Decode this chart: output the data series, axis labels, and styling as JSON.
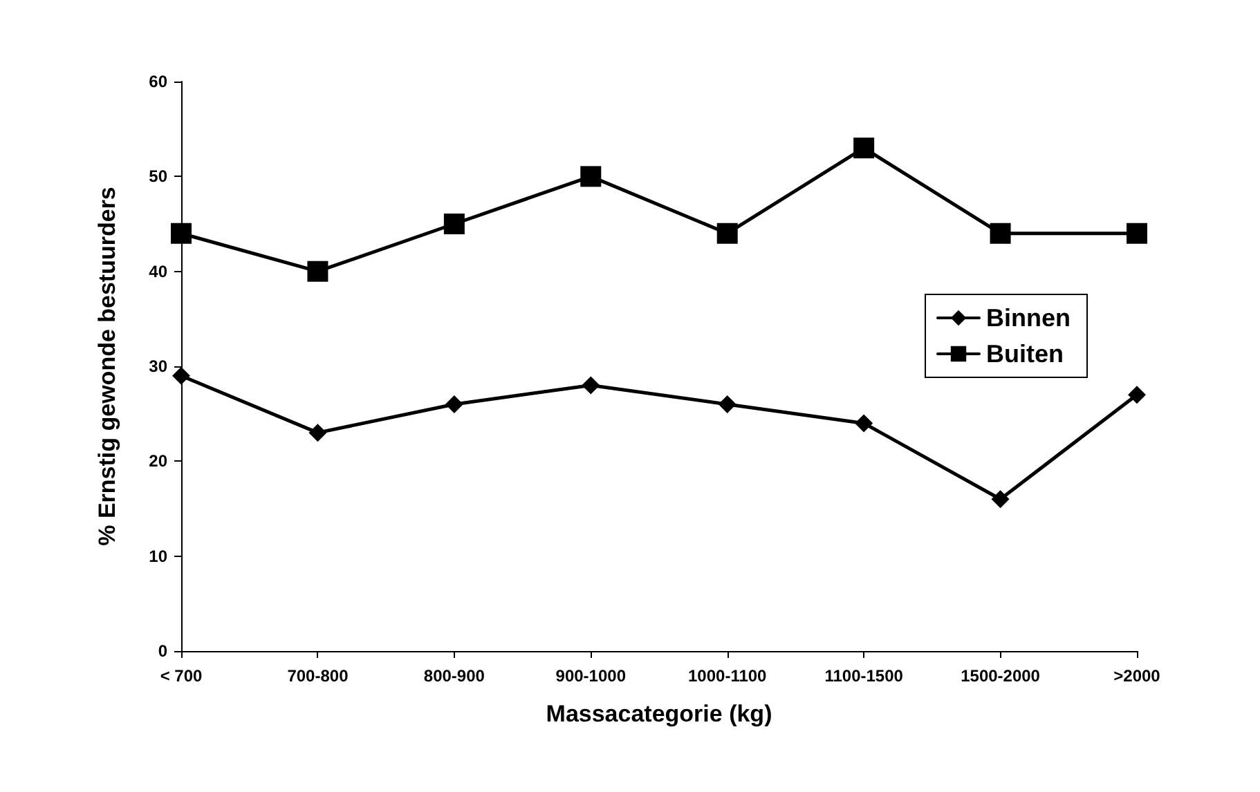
{
  "chart_data": {
    "type": "line",
    "xlabel": "Massacategorie (kg)",
    "ylabel": "% Ernstig gewonde bestuurders",
    "categories": [
      "< 700",
      "700-800",
      "800-900",
      "900-1000",
      "1000-1100",
      "1100-1500",
      "1500-2000",
      ">2000"
    ],
    "series": [
      {
        "name": "Binnen",
        "color": "#000000",
        "marker": "diamond",
        "values": [
          29,
          23,
          26,
          28,
          26,
          24,
          16,
          27
        ]
      },
      {
        "name": "Buiten",
        "color": "#000000",
        "marker": "square",
        "values": [
          44,
          40,
          45,
          50,
          44,
          53,
          44,
          44
        ]
      }
    ],
    "ylim": [
      0,
      60
    ],
    "yticks": [
      0,
      10,
      20,
      30,
      40,
      50,
      60
    ],
    "grid": false,
    "legend": "right",
    "line_style": "solid"
  }
}
